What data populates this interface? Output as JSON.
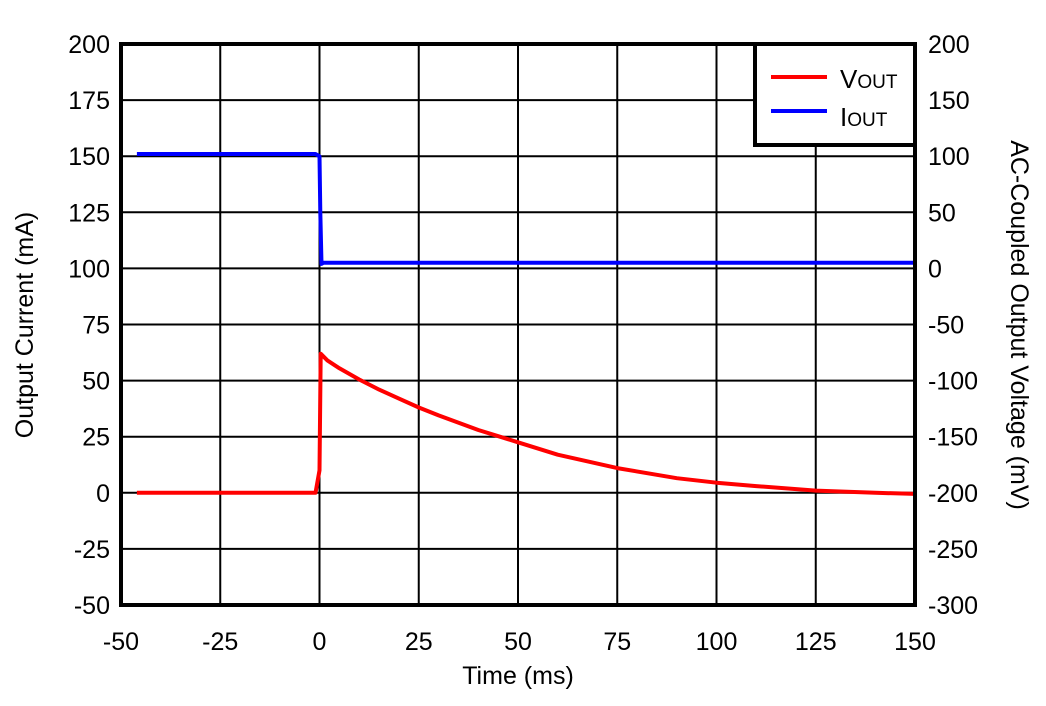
{
  "chart_data": {
    "type": "line",
    "title": "",
    "xlabel": "Time (ms)",
    "ylabel": "Output Current (mA)",
    "y2label": "AC-Coupled Output Voltage (mV)",
    "xlim": [
      -50,
      150
    ],
    "ylim": [
      -50,
      200
    ],
    "y2lim": [
      -300,
      200
    ],
    "x_ticks": [
      "-50",
      "-25",
      "0",
      "25",
      "50",
      "75",
      "100",
      "125",
      "150"
    ],
    "y_ticks": [
      "200",
      "175",
      "150",
      "125",
      "100",
      "75",
      "50",
      "25",
      "0",
      "-25",
      "-50"
    ],
    "y2_ticks": [
      "200",
      "150",
      "100",
      "50",
      "0",
      "-50",
      "-100",
      "-150",
      "-200",
      "-250",
      "-300"
    ],
    "grid": true,
    "legend_position": "upper right",
    "legend": [
      {
        "label": "V",
        "sub": "OUT",
        "color": "#ff0000"
      },
      {
        "label": "I",
        "sub": "OUT",
        "color": "#0000ff"
      }
    ],
    "series": [
      {
        "name": "VOUT",
        "axis": "right",
        "unit": "mV",
        "color": "#ff0000",
        "x": [
          -46,
          -25,
          -1,
          0,
          0.3,
          2,
          5,
          10,
          15,
          20,
          25,
          30,
          40,
          50,
          60,
          75,
          90,
          100,
          110,
          125,
          140,
          150
        ],
        "values": [
          -200,
          -200,
          -200,
          -180,
          -76,
          -82,
          -89,
          -99,
          -108,
          -116,
          -124,
          -131,
          -144,
          -155,
          -166,
          -178,
          -187,
          -191,
          -194,
          -198,
          -200,
          -201
        ]
      },
      {
        "name": "IOUT",
        "axis": "left",
        "unit": "mA",
        "color": "#0000ff",
        "x": [
          -46,
          -1,
          0,
          0.2,
          0.5,
          1,
          50,
          100,
          150
        ],
        "values": [
          151,
          151,
          150,
          125,
          102,
          102.5,
          102.5,
          102.5,
          102.5
        ]
      }
    ]
  }
}
